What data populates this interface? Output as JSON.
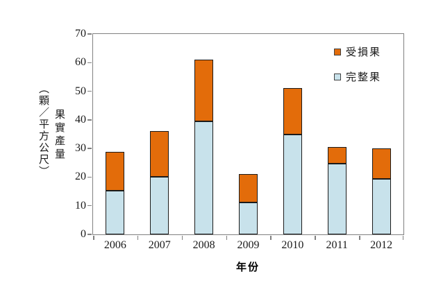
{
  "chart_data": {
    "type": "bar",
    "stacked": true,
    "title": "",
    "xlabel": "年份",
    "ylabel": "果實產量",
    "ylabel_unit": "（顆／平方公尺）",
    "categories": [
      "2006",
      "2007",
      "2008",
      "2009",
      "2010",
      "2011",
      "2012"
    ],
    "series": [
      {
        "name": "受損果",
        "color": "#E36C0A",
        "values": [
          13.6,
          16.2,
          21.4,
          9.8,
          16.4,
          5.8,
          10.6
        ]
      },
      {
        "name": "完整果",
        "color": "#C8E2EB",
        "values": [
          15.2,
          20.0,
          39.6,
          11.2,
          34.8,
          24.8,
          19.4
        ]
      }
    ],
    "totals": [
      28.8,
      36.2,
      61.0,
      21.0,
      51.2,
      30.6,
      30.0
    ],
    "ylim": [
      0,
      70
    ],
    "yticks": [
      0,
      10,
      20,
      30,
      40,
      50,
      60,
      70
    ],
    "legend_position": "inside-top-right",
    "grid": false
  },
  "colors": {
    "axis": "#808080",
    "bar_border": "#1A1A1A",
    "damaged": "#E36C0A",
    "intact": "#C8E2EB",
    "background": "#FFFFFF",
    "text": "#1A1A1A"
  }
}
